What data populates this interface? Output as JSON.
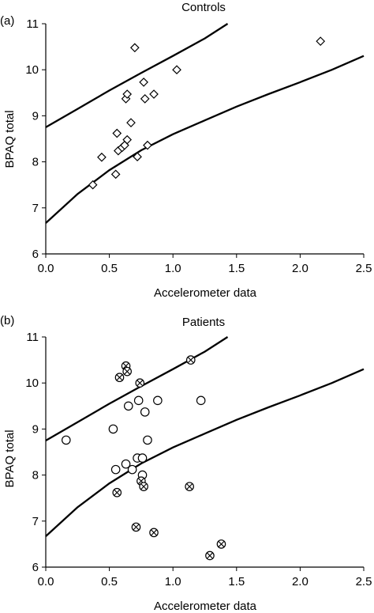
{
  "chart_data": [
    {
      "type": "scatter",
      "panel_label": "(a)",
      "title": "Controls",
      "xlabel": "Accelerometer data",
      "ylabel": "BPAQ total",
      "xlim": [
        0.0,
        2.5
      ],
      "ylim": [
        6,
        11
      ],
      "xticks": [
        "0.0",
        "0.5",
        "1.0",
        "1.5",
        "2.0",
        "2.5"
      ],
      "yticks": [
        "6",
        "7",
        "8",
        "9",
        "10",
        "11"
      ],
      "grid": false,
      "series": [
        {
          "marker": "diamond",
          "points": [
            [
              0.37,
              7.5
            ],
            [
              0.44,
              8.1
            ],
            [
              0.55,
              7.73
            ],
            [
              0.56,
              8.62
            ],
            [
              0.57,
              8.24
            ],
            [
              0.6,
              8.31
            ],
            [
              0.62,
              8.36
            ],
            [
              0.63,
              9.37
            ],
            [
              0.64,
              9.47
            ],
            [
              0.64,
              8.48
            ],
            [
              0.67,
              8.85
            ],
            [
              0.7,
              10.48
            ],
            [
              0.72,
              8.11
            ],
            [
              0.77,
              9.73
            ],
            [
              0.78,
              9.37
            ],
            [
              0.8,
              8.36
            ],
            [
              0.85,
              9.47
            ],
            [
              1.03,
              10.0
            ],
            [
              2.16,
              10.62
            ]
          ]
        }
      ],
      "curves": [
        {
          "x": [
            0.0,
            0.25,
            0.5,
            0.75,
            1.0,
            1.25,
            1.43
          ],
          "y": [
            8.75,
            9.15,
            9.55,
            9.93,
            10.3,
            10.68,
            11.0
          ]
        },
        {
          "x": [
            0.0,
            0.25,
            0.5,
            0.75,
            1.0,
            1.25,
            1.5,
            1.75,
            2.0,
            2.25,
            2.5
          ],
          "y": [
            6.67,
            7.3,
            7.82,
            8.25,
            8.6,
            8.9,
            9.2,
            9.47,
            9.73,
            10.0,
            10.3
          ]
        }
      ]
    },
    {
      "type": "scatter",
      "panel_label": "(b)",
      "title": "Patients",
      "xlabel": "Accelerometer data",
      "ylabel": "BPAQ total",
      "xlim": [
        0.0,
        2.5
      ],
      "ylim": [
        6,
        11
      ],
      "xticks": [
        "0.0",
        "0.5",
        "1.0",
        "1.5",
        "2.0",
        "2.5"
      ],
      "yticks": [
        "6",
        "7",
        "8",
        "9",
        "10",
        "11"
      ],
      "grid": false,
      "series": [
        {
          "marker": "circle",
          "points": [
            [
              0.16,
              8.76
            ],
            [
              0.53,
              9.0
            ],
            [
              0.55,
              8.12
            ],
            [
              0.63,
              8.24
            ],
            [
              0.65,
              9.5
            ],
            [
              0.68,
              8.12
            ],
            [
              0.72,
              8.37
            ],
            [
              0.73,
              9.62
            ],
            [
              0.76,
              8.37
            ],
            [
              0.76,
              8.0
            ],
            [
              0.78,
              9.37
            ],
            [
              0.8,
              8.76
            ],
            [
              0.88,
              9.62
            ],
            [
              1.22,
              9.62
            ]
          ]
        },
        {
          "marker": "circle-x",
          "points": [
            [
              0.56,
              7.62
            ],
            [
              0.58,
              10.12
            ],
            [
              0.63,
              10.37
            ],
            [
              0.64,
              10.25
            ],
            [
              0.71,
              6.87
            ],
            [
              0.74,
              10.0
            ],
            [
              0.75,
              7.87
            ],
            [
              0.77,
              7.75
            ],
            [
              0.85,
              6.75
            ],
            [
              1.13,
              7.75
            ],
            [
              1.14,
              10.5
            ],
            [
              1.29,
              6.25
            ],
            [
              1.38,
              6.5
            ]
          ]
        }
      ],
      "curves": [
        {
          "x": [
            0.0,
            0.25,
            0.5,
            0.75,
            1.0,
            1.25,
            1.43
          ],
          "y": [
            8.75,
            9.15,
            9.55,
            9.93,
            10.3,
            10.68,
            11.0
          ]
        },
        {
          "x": [
            0.0,
            0.25,
            0.5,
            0.75,
            1.0,
            1.25,
            1.5,
            1.75,
            2.0,
            2.25,
            2.5
          ],
          "y": [
            6.67,
            7.3,
            7.82,
            8.25,
            8.6,
            8.9,
            9.2,
            9.47,
            9.73,
            10.0,
            10.3
          ]
        }
      ]
    }
  ]
}
